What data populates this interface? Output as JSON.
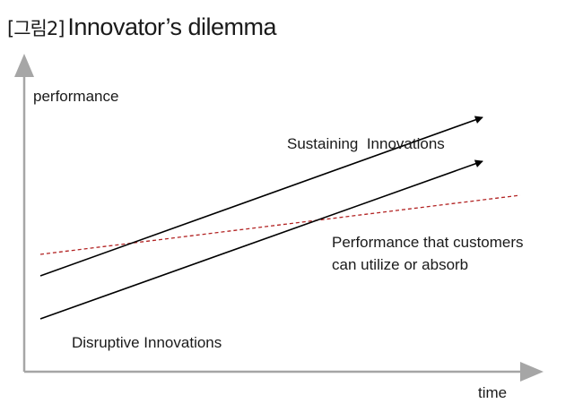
{
  "figure": {
    "tag": "[그림2]",
    "title": "Innovator’s dilemma"
  },
  "axes": {
    "y_label": "performance",
    "x_label": "time",
    "color": "#a6a6a6"
  },
  "lines": {
    "sustaining": {
      "label": "Sustaining  Innovations",
      "color": "#000000"
    },
    "disruptive": {
      "label": "Disruptive Innovations",
      "color": "#000000"
    },
    "customer_demand": {
      "label_line1": "Performance that customers",
      "label_line2": "can utilize or absorb",
      "color": "#b22222",
      "style": "dashed"
    }
  }
}
